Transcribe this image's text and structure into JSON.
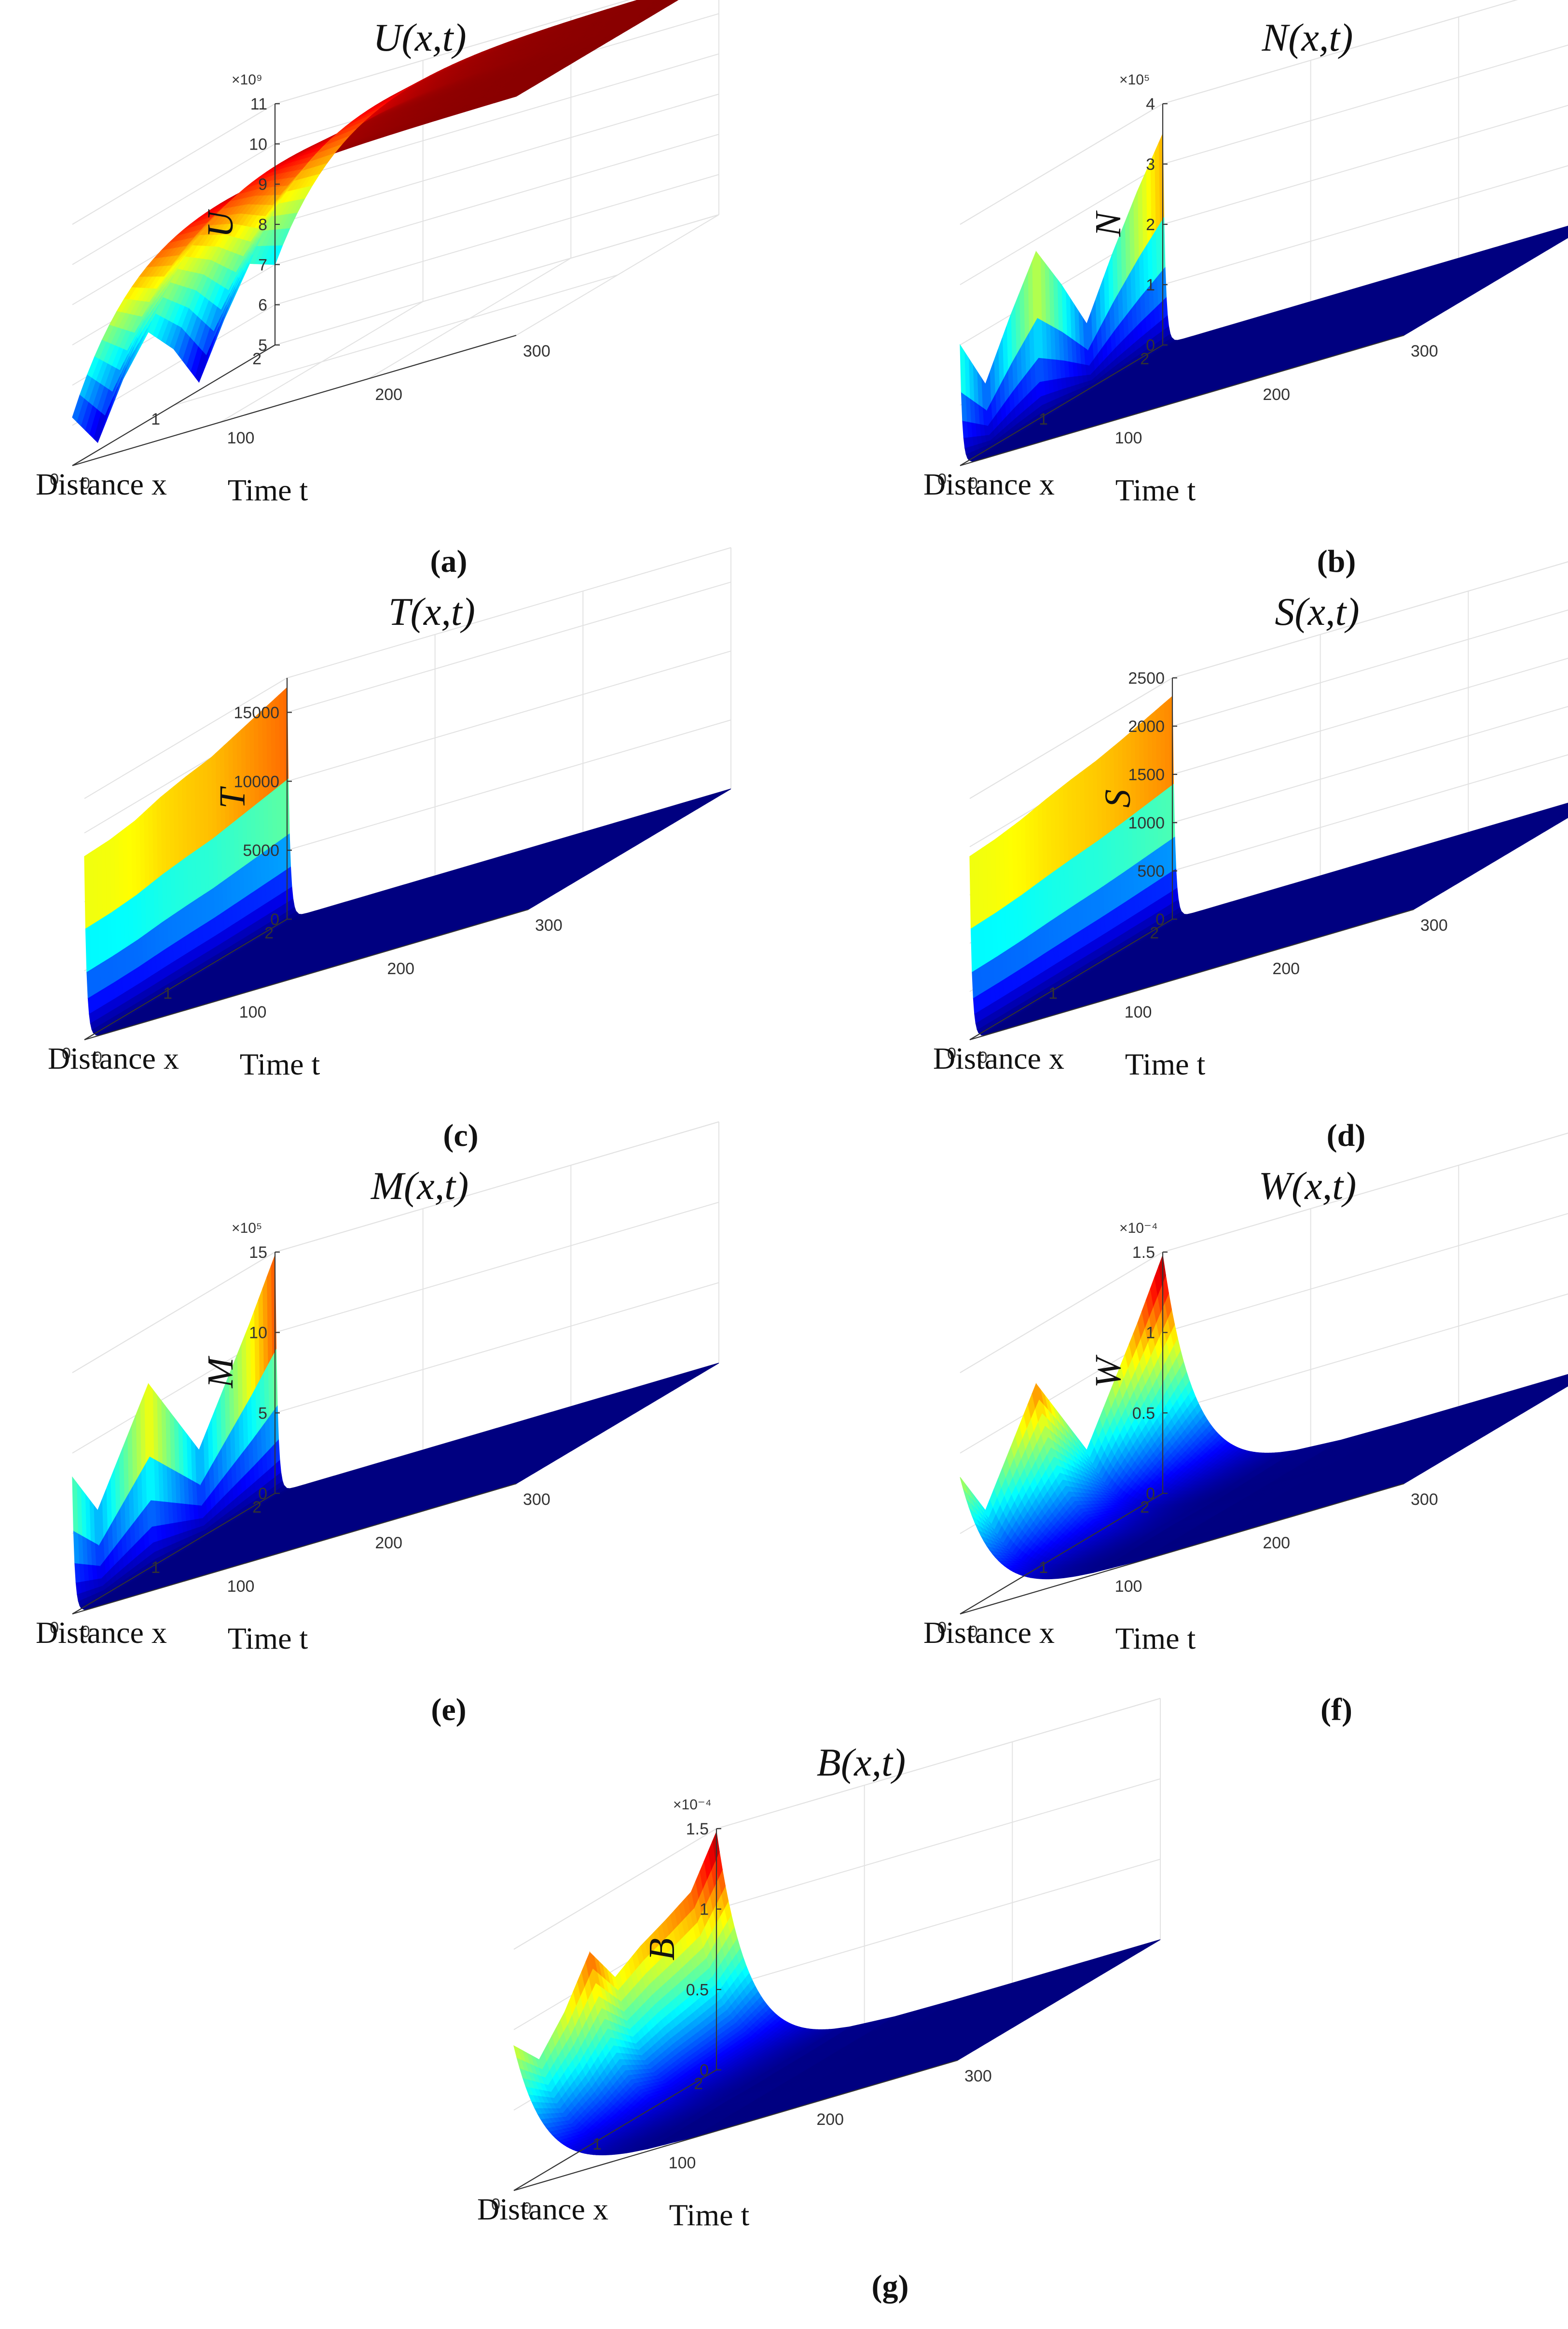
{
  "chart_data": [
    {
      "type": "surface3d",
      "title": "U(x,t)",
      "zlabel": "U",
      "xlabel": "Distance x",
      "tlabel": "Time t",
      "caption": "(a)",
      "exponent": "×10⁹",
      "x_range": [
        0,
        2
      ],
      "t_range": [
        0,
        300
      ],
      "zlim": [
        5,
        11
      ],
      "x_ticks": [
        "0",
        "1",
        "2"
      ],
      "t_ticks": [
        "100",
        "200",
        "300"
      ],
      "z_ticks": [
        "5",
        "6",
        "7",
        "8",
        "9",
        "10",
        "11"
      ],
      "initial_profile": {
        "x": [
          0,
          0.25,
          0.5,
          0.75,
          1.0,
          1.25,
          1.5,
          1.75,
          2.0
        ],
        "z": [
          6.2,
          5.2,
          6.4,
          7.2,
          6.4,
          5.2,
          6.4,
          7.4,
          7.0
        ]
      },
      "time_behaviour": "rises from the initial profile and saturates near 11 by t ≈ 300"
    },
    {
      "type": "surface3d",
      "title": "N(x,t)",
      "zlabel": "N",
      "xlabel": "Distance x",
      "tlabel": "Time t",
      "caption": "(b)",
      "exponent": "×10⁵",
      "x_range": [
        0,
        2
      ],
      "t_range": [
        0,
        300
      ],
      "zlim": [
        0,
        4
      ],
      "x_ticks": [
        "0",
        "1",
        "2"
      ],
      "t_ticks": [
        "100",
        "200",
        "300"
      ],
      "z_ticks": [
        "0",
        "1",
        "2",
        "3",
        "4"
      ],
      "initial_profile": {
        "x": [
          0,
          0.25,
          0.5,
          0.75,
          1.0,
          1.25,
          1.5,
          1.75,
          2.0
        ],
        "z": [
          2.0,
          1.1,
          2.0,
          2.8,
          2.0,
          1.1,
          2.0,
          2.8,
          3.5
        ]
      },
      "time_behaviour": "drops to 0 immediately after t = 0"
    },
    {
      "type": "surface3d",
      "title": "T(x,t)",
      "zlabel": "T",
      "xlabel": "Distance x",
      "tlabel": "Time t",
      "caption": "(c)",
      "exponent": "",
      "x_range": [
        0,
        2
      ],
      "t_range": [
        0,
        300
      ],
      "zlim": [
        0,
        17500
      ],
      "x_ticks": [
        "0",
        "1",
        "2"
      ],
      "t_ticks": [
        "100",
        "200",
        "300"
      ],
      "z_ticks": [
        "0",
        "5000",
        "10000",
        "15000"
      ],
      "initial_profile": {
        "x": [
          0,
          0.25,
          0.5,
          0.75,
          1.0,
          1.25,
          1.5,
          1.75,
          2.0
        ],
        "z": [
          13300,
          13400,
          13700,
          14300,
          14700,
          15000,
          15600,
          16200,
          16800
        ]
      },
      "time_behaviour": "drops to 0 immediately after t = 0"
    },
    {
      "type": "surface3d",
      "title": "S(x,t)",
      "zlabel": "S",
      "xlabel": "Distance x",
      "tlabel": "Time t",
      "caption": "(d)",
      "exponent": "",
      "x_range": [
        0,
        2
      ],
      "t_range": [
        0,
        300
      ],
      "zlim": [
        0,
        2500
      ],
      "x_ticks": [
        "0",
        "1",
        "2"
      ],
      "t_ticks": [
        "100",
        "200",
        "300"
      ],
      "z_ticks": [
        "0",
        "500",
        "1000",
        "1500",
        "2000",
        "2500"
      ],
      "initial_profile": {
        "x": [
          0,
          0.25,
          0.5,
          0.75,
          1.0,
          1.25,
          1.5,
          1.75,
          2.0
        ],
        "z": [
          1900,
          1920,
          1960,
          2020,
          2070,
          2110,
          2170,
          2240,
          2310
        ]
      },
      "time_behaviour": "drops to 0 immediately after t = 0"
    },
    {
      "type": "surface3d",
      "title": "M(x,t)",
      "zlabel": "M",
      "xlabel": "Distance x",
      "tlabel": "Time t",
      "caption": "(e)",
      "exponent": "×10⁵",
      "x_range": [
        0,
        2
      ],
      "t_range": [
        0,
        300
      ],
      "zlim": [
        0,
        15
      ],
      "x_ticks": [
        "0",
        "1",
        "2"
      ],
      "t_ticks": [
        "100",
        "200",
        "300"
      ],
      "z_ticks": [
        "0",
        "5",
        "10",
        "15"
      ],
      "initial_profile": {
        "x": [
          0,
          0.25,
          0.5,
          0.75,
          1.0,
          1.25,
          1.5,
          1.75,
          2.0
        ],
        "z": [
          8.5,
          5.5,
          8.5,
          11.5,
          8.5,
          5.5,
          8.5,
          11.5,
          14.8
        ]
      },
      "time_behaviour": "drops to 0 immediately after t = 0"
    },
    {
      "type": "surface3d",
      "title": "W(x,t)",
      "zlabel": "W",
      "xlabel": "Distance x",
      "tlabel": "Time t",
      "caption": "(f)",
      "exponent": "×10⁻⁴",
      "x_range": [
        0,
        2
      ],
      "t_range": [
        0,
        300
      ],
      "zlim": [
        0,
        1.5
      ],
      "x_ticks": [
        "0",
        "1",
        "2"
      ],
      "t_ticks": [
        "100",
        "200",
        "300"
      ],
      "z_ticks": [
        "0",
        "0.5",
        "1",
        "1.5"
      ],
      "initial_profile": {
        "x": [
          0,
          0.25,
          0.5,
          0.75,
          1.0,
          1.25,
          1.5,
          1.75,
          2.0
        ],
        "z": [
          0.85,
          0.55,
          0.85,
          1.15,
          0.85,
          0.55,
          0.85,
          1.15,
          1.48
        ]
      },
      "time_behaviour": "decays smoothly to 0 by t ≈ 75"
    },
    {
      "type": "surface3d",
      "title": "B(x,t)",
      "zlabel": "B",
      "xlabel": "Distance x",
      "tlabel": "Time t",
      "caption": "(g)",
      "exponent": "×10⁻⁴",
      "x_range": [
        0,
        2
      ],
      "t_range": [
        0,
        300
      ],
      "zlim": [
        0,
        1.5
      ],
      "x_ticks": [
        "0",
        "1",
        "2"
      ],
      "t_ticks": [
        "100",
        "200",
        "300"
      ],
      "z_ticks": [
        "0",
        "0.5",
        "1",
        "1.5"
      ],
      "initial_profile": {
        "x": [
          0,
          0.25,
          0.5,
          0.75,
          1.0,
          1.25,
          1.5,
          1.75,
          2.0
        ],
        "z": [
          0.9,
          0.72,
          0.92,
          1.2,
          0.95,
          1.05,
          1.12,
          1.2,
          1.48
        ]
      },
      "time_behaviour": "decays smoothly to 0 by t ≈ 75"
    }
  ]
}
